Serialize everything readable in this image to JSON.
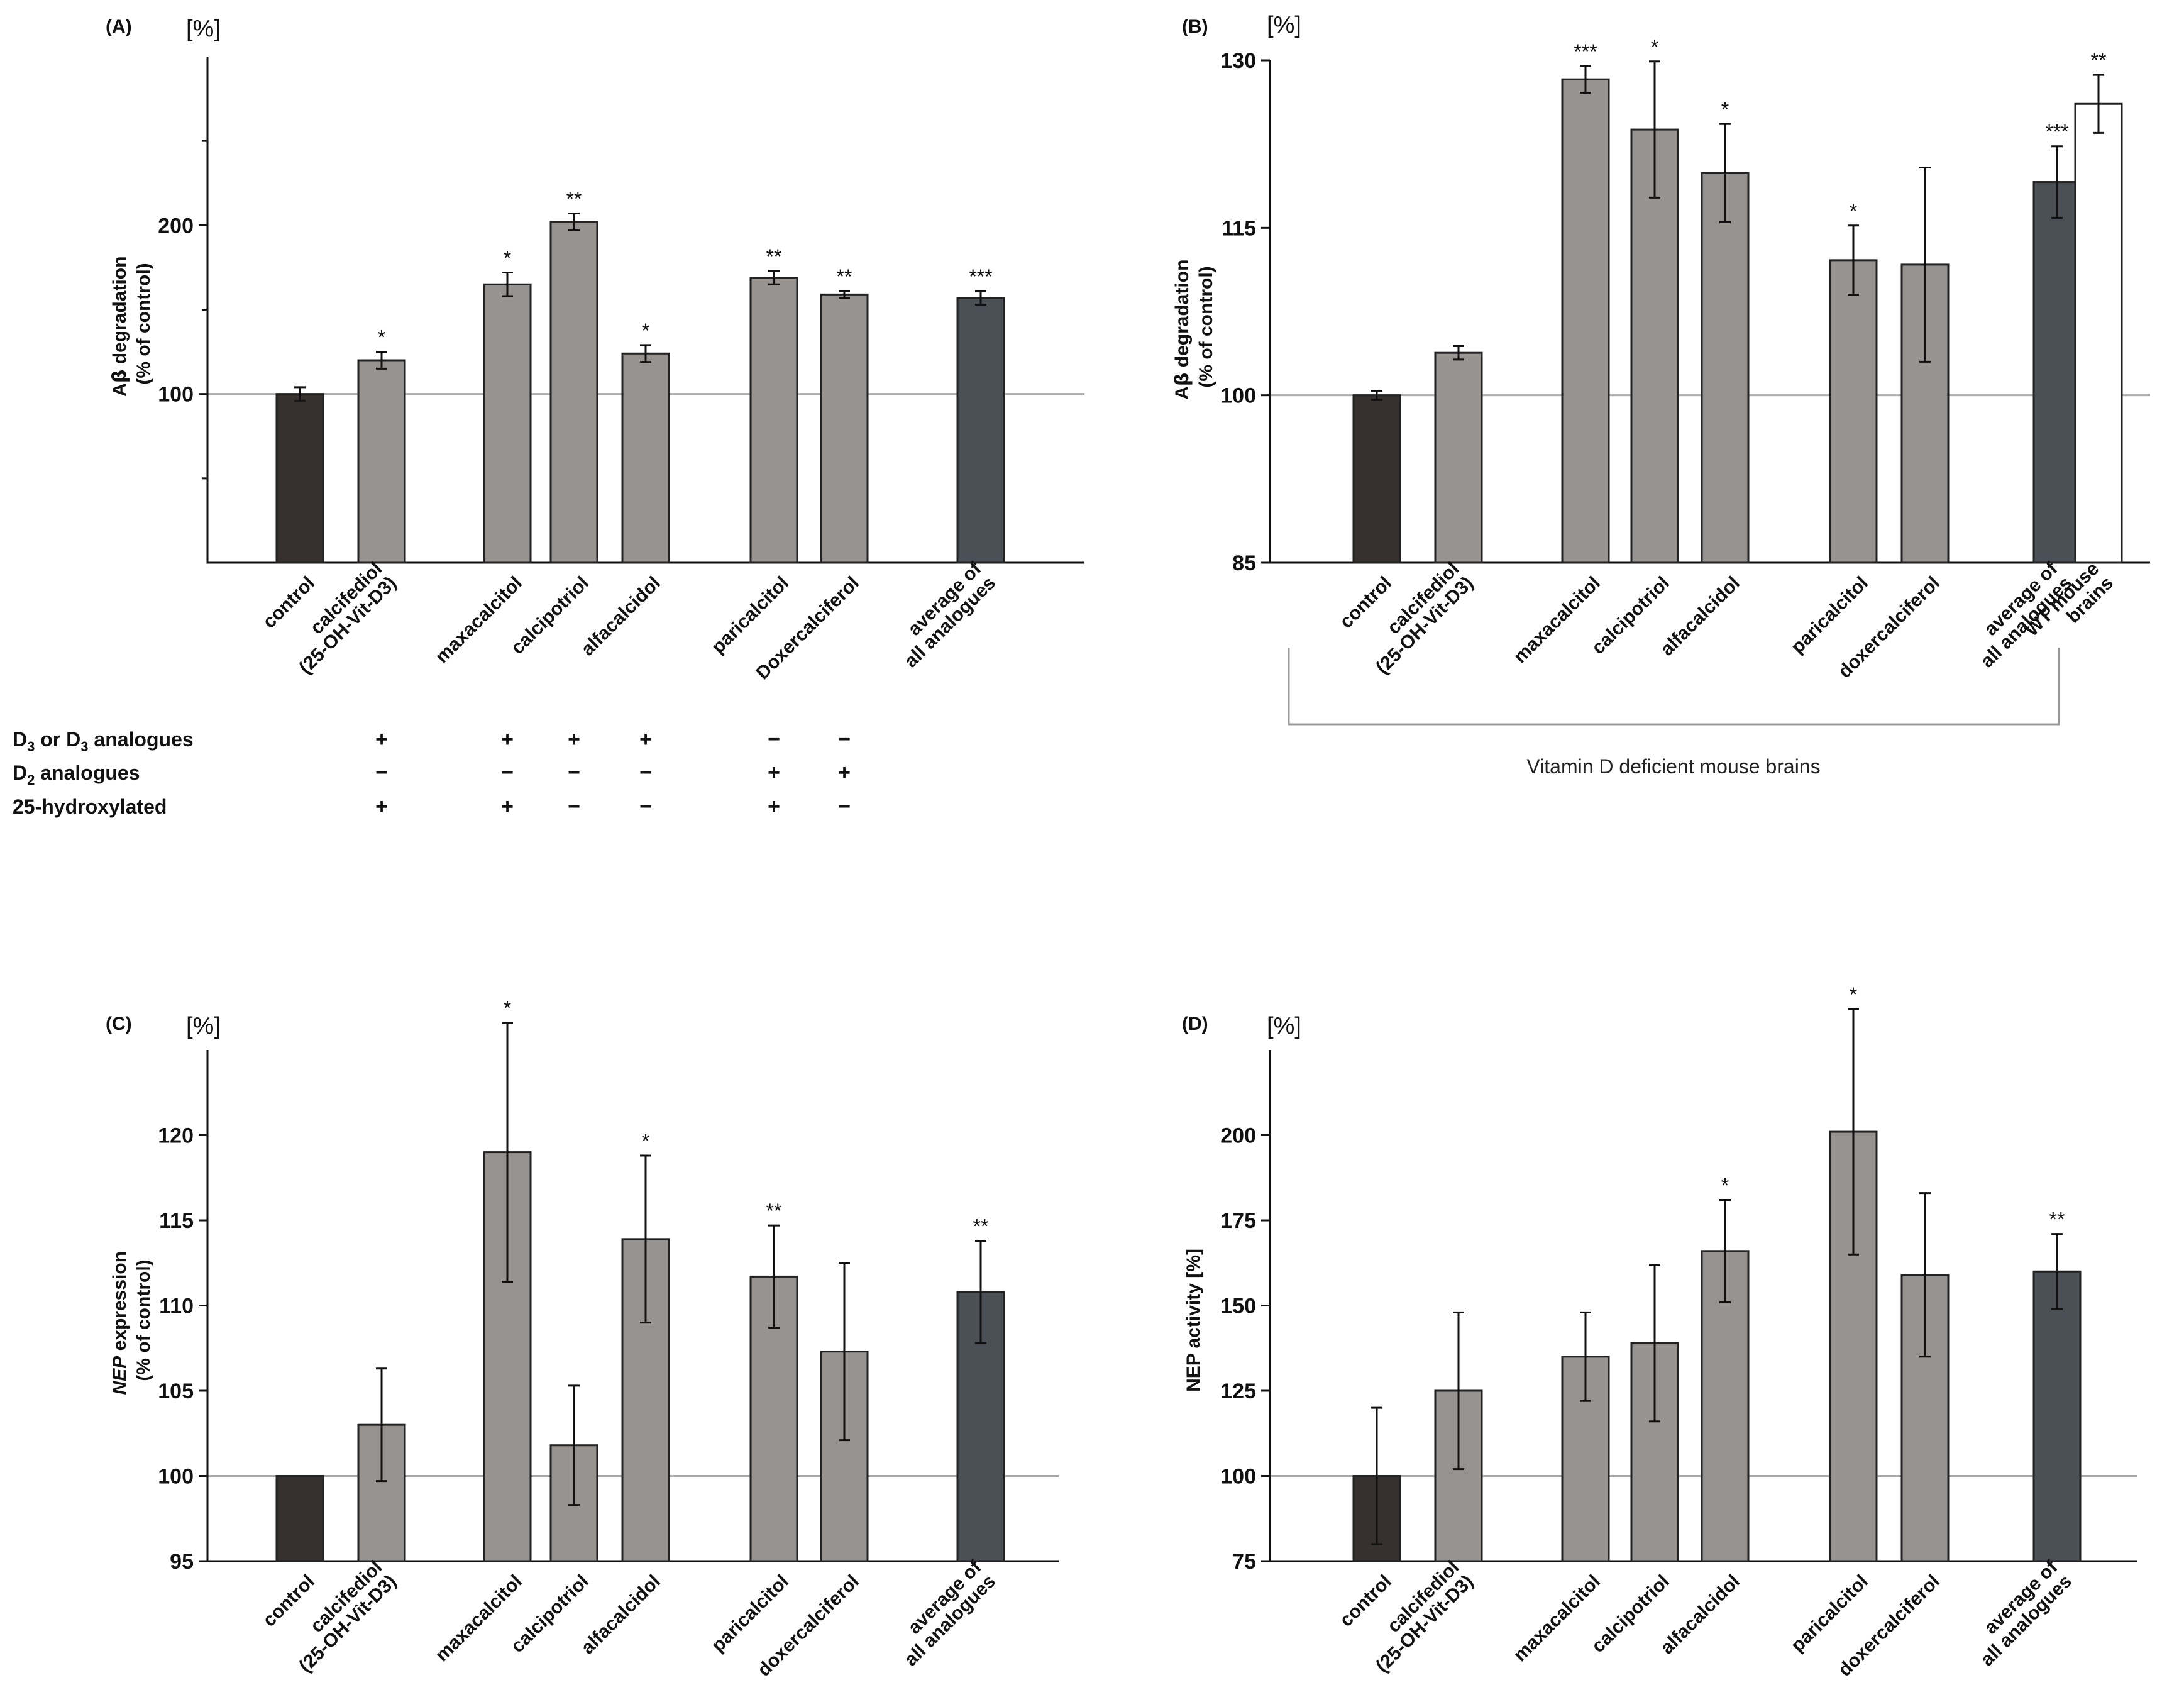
{
  "colors": {
    "control": "#36312e",
    "analogue": "#979391",
    "average": "#4a5055",
    "wt": "#ffffff",
    "baseline": "#aaaaaa",
    "axis": "#111111"
  },
  "chart_data": [
    {
      "id": "A",
      "type": "bar",
      "panel_label": "(A)",
      "unit_label": "[%]",
      "ylabel": "Aβ degradation (% of control)",
      "ylim": [
        0,
        300
      ],
      "yticks": [
        100,
        200
      ],
      "ytick_labels": [
        "100",
        "200"
      ],
      "minor_ticks": [
        50,
        150,
        250
      ],
      "baseline": 100,
      "categories": [
        "control",
        "calcifediol (25-OH-Vit-D3)",
        "maxacalcitol",
        "calcipotriol",
        "alfacalcidol",
        "paricalcitol",
        "Doxercalciferol",
        "average of all analogues"
      ],
      "category_lines": [
        [
          "control"
        ],
        [
          "calcifediol",
          "(25-OH-Vit-D3)"
        ],
        [
          "maxacalcitol"
        ],
        [
          "calcipotriol"
        ],
        [
          "alfacalcidol"
        ],
        [
          "paricalcitol"
        ],
        [
          "Doxercalciferol"
        ],
        [
          "average of",
          "all analogues"
        ]
      ],
      "values": [
        100,
        120,
        165,
        202,
        124,
        169,
        159,
        157
      ],
      "errors": [
        4,
        5,
        7,
        5,
        5,
        4,
        2,
        4
      ],
      "significance": [
        "",
        "*",
        "*",
        "**",
        "*",
        "**",
        "**",
        "***"
      ],
      "bar_kinds": [
        "control",
        "analogue",
        "analogue",
        "analogue",
        "analogue",
        "analogue",
        "analogue",
        "average"
      ]
    },
    {
      "id": "B",
      "type": "bar",
      "panel_label": "(B)",
      "unit_label": "[%]",
      "ylabel": "Aβ degradation (% of control)",
      "ylim": [
        85,
        130
      ],
      "yticks": [
        85,
        100,
        115,
        130
      ],
      "ytick_labels": [
        "85",
        "100",
        "115",
        "130"
      ],
      "minor_ticks": [],
      "baseline": 100,
      "categories": [
        "control",
        "calcifediol (25-OH-Vit-D3)",
        "maxacalcitol",
        "calcipotriol",
        "alfacalcidol",
        "paricalcitol",
        "doxercalciferol",
        "average of all analogues",
        "WT mouse brains"
      ],
      "category_lines": [
        [
          "control"
        ],
        [
          "calcifediol",
          "(25-OH-Vit-D3)"
        ],
        [
          "maxacalcitol"
        ],
        [
          "calcipotriol"
        ],
        [
          "alfacalcidol"
        ],
        [
          "paricalcitol"
        ],
        [
          "doxercalciferol"
        ],
        [
          "average of",
          "all analogues"
        ],
        [
          "WT mouse",
          "brains"
        ]
      ],
      "values": [
        100,
        103.8,
        128.3,
        123.8,
        119.9,
        112.1,
        111.7,
        119.1,
        126.1
      ],
      "errors": [
        0.4,
        0.6,
        1.2,
        6.1,
        4.4,
        3.1,
        8.7,
        3.2,
        2.6
      ],
      "significance": [
        "",
        "",
        "***",
        "*",
        "*",
        "*",
        "",
        "***",
        "**"
      ],
      "bar_kinds": [
        "control",
        "analogue",
        "analogue",
        "analogue",
        "analogue",
        "analogue",
        "analogue",
        "average",
        "wt"
      ],
      "group_label": "Vitamin D deficient mouse brains"
    },
    {
      "id": "C",
      "type": "bar",
      "panel_label": "(C)",
      "unit_label": "[%]",
      "ylabel": "NEP expression (% of control)",
      "ylim": [
        95,
        125
      ],
      "yticks": [
        95,
        100,
        105,
        110,
        115,
        120
      ],
      "ytick_labels": [
        "95",
        "100",
        "105",
        "110",
        "115",
        "120"
      ],
      "minor_ticks": [],
      "baseline": 100,
      "categories": [
        "control",
        "calcifediol (25-OH-Vit-D3)",
        "maxacalcitol",
        "calcipotriol",
        "alfacalcidol",
        "paricalcitol",
        "doxercalciferol",
        "average of all analogues"
      ],
      "category_lines": [
        [
          "control"
        ],
        [
          "calcifediol",
          "(25-OH-Vit-D3)"
        ],
        [
          "maxacalcitol"
        ],
        [
          "calcipotriol"
        ],
        [
          "alfacalcidol"
        ],
        [
          "paricalcitol"
        ],
        [
          "doxercalciferol"
        ],
        [
          "average of",
          "all analogues"
        ]
      ],
      "values": [
        100,
        103,
        119,
        101.8,
        113.9,
        111.7,
        107.3,
        110.8
      ],
      "errors": [
        0,
        3.3,
        7.6,
        3.5,
        4.9,
        3,
        5.2,
        3
      ],
      "significance": [
        "",
        "",
        "*",
        "",
        "*",
        "**",
        "",
        "**"
      ],
      "bar_kinds": [
        "control",
        "analogue",
        "analogue",
        "analogue",
        "analogue",
        "analogue",
        "analogue",
        "average"
      ]
    },
    {
      "id": "D",
      "type": "bar",
      "panel_label": "(D)",
      "unit_label": "[%]",
      "ylabel": "NEP activity [%]",
      "ylim": [
        75,
        225
      ],
      "yticks": [
        75,
        100,
        125,
        150,
        175,
        200
      ],
      "ytick_labels": [
        "75",
        "100",
        "125",
        "150",
        "175",
        "200"
      ],
      "minor_ticks": [],
      "baseline": 100,
      "categories": [
        "control",
        "calcifediol (25-OH-Vit-D3)",
        "maxacalcitol",
        "calcipotriol",
        "alfacalcidol",
        "paricalcitol",
        "doxercalciferol",
        "average of all analogues"
      ],
      "category_lines": [
        [
          "control"
        ],
        [
          "calcifediol",
          "(25-OH-Vit-D3)"
        ],
        [
          "maxacalcitol"
        ],
        [
          "calcipotriol"
        ],
        [
          "alfacalcidol"
        ],
        [
          "paricalcitol"
        ],
        [
          "doxercalciferol"
        ],
        [
          "average of",
          "all analogues"
        ]
      ],
      "values": [
        100,
        125,
        135,
        139,
        166,
        201,
        159,
        160
      ],
      "errors": [
        20,
        23,
        13,
        23,
        15,
        36,
        24,
        11
      ],
      "significance": [
        "",
        "",
        "",
        "",
        "*",
        "*",
        "",
        "**"
      ],
      "bar_kinds": [
        "control",
        "analogue",
        "analogue",
        "analogue",
        "analogue",
        "analogue",
        "analogue",
        "average"
      ]
    }
  ],
  "properties_table": {
    "rows": [
      {
        "label": "D3 or D3 analogues",
        "signs": [
          "+",
          "+",
          "+",
          "+",
          "−",
          "−"
        ]
      },
      {
        "label": "D2 analogues",
        "signs": [
          "−",
          "−",
          "−",
          "−",
          "+",
          "+"
        ]
      },
      {
        "label": "25-hydroxylated",
        "signs": [
          "+",
          "+",
          "−",
          "−",
          "+",
          "−"
        ]
      }
    ]
  }
}
